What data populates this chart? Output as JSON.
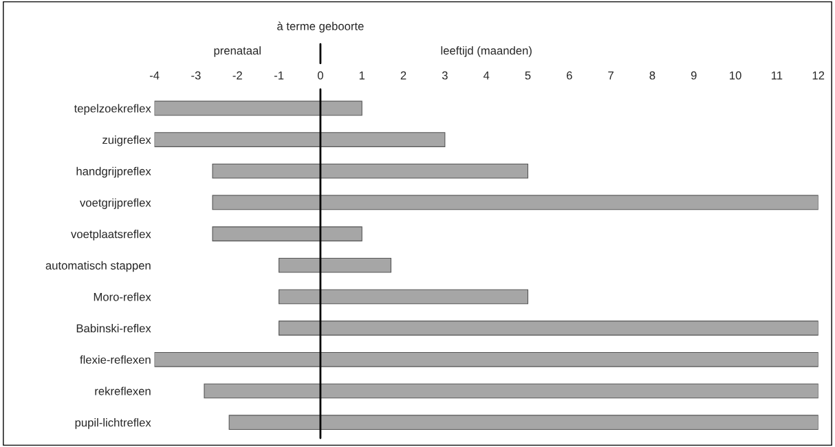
{
  "chart_data": {
    "type": "bar",
    "orientation": "horizontal",
    "xlabel": "leeftijd (maanden)",
    "categories": [
      "tepelzoekreflex",
      "zuigreflex",
      "handgrijpreflex",
      "voetgrijpreflex",
      "voetplaatsreflex",
      "automatisch stappen",
      "Moro-reflex",
      "Babinski-reflex",
      "flexie-reflexen",
      "rekreflexen",
      "pupil-lichtreflex"
    ],
    "base": [
      -4,
      -4,
      -2.6,
      -2.6,
      -2.6,
      -1,
      -1,
      -1,
      -4,
      -2.8,
      -2.2
    ],
    "values": [
      5,
      7,
      7.6,
      14.6,
      3.6,
      2.7,
      6,
      13,
      16,
      14.8,
      14.2
    ],
    "color": "#a6a6a6",
    "xlim": [
      -4,
      12
    ],
    "xticks": [
      -4,
      -3,
      -2,
      -1,
      0,
      1,
      2,
      3,
      4,
      5,
      6,
      7,
      8,
      9,
      10,
      11,
      12
    ],
    "ref_lines": [
      {
        "axis": "x",
        "value": 0,
        "label": "à terme geboorte",
        "color": "#000000"
      }
    ],
    "annotations": [
      "prenataal"
    ],
    "grid": false,
    "legend": false
  }
}
